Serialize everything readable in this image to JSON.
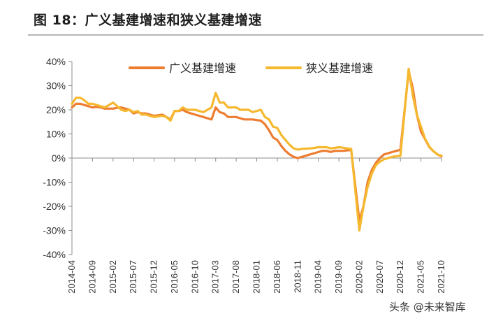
{
  "title": "图 18：广义基建增速和狭义基建增速",
  "watermark": "头条 @未来智库",
  "chart_data": {
    "type": "line",
    "ylim": [
      -40,
      40
    ],
    "yticks": [
      -40,
      -30,
      -20,
      -10,
      0,
      10,
      20,
      30,
      40
    ],
    "ytick_labels": [
      "-40%",
      "-30%",
      "-20%",
      "-10%",
      "0%",
      "10%",
      "20%",
      "30%",
      "40%"
    ],
    "x_tick_labels": [
      "2014-04",
      "2014-09",
      "2015-02",
      "2015-07",
      "2015-12",
      "2016-05",
      "2016-10",
      "2017-03",
      "2017-08",
      "2018-01",
      "2018-06",
      "2018-11",
      "2019-04",
      "2019-09",
      "2020-02",
      "2020-07",
      "2020-12",
      "2021-05",
      "2021-10"
    ],
    "grid": false,
    "legend_position": "top",
    "series": [
      {
        "name": "广义基建增速",
        "color": "#ed7d31",
        "points": [
          [
            "2014-04",
            21
          ],
          [
            "2014-05",
            22.5
          ],
          [
            "2014-06",
            22.5
          ],
          [
            "2014-07",
            22
          ],
          [
            "2014-08",
            21.5
          ],
          [
            "2014-09",
            21
          ],
          [
            "2014-10",
            21.2
          ],
          [
            "2014-11",
            21
          ],
          [
            "2014-12",
            20.5
          ],
          [
            "2015-02",
            20.5
          ],
          [
            "2015-03",
            20.8
          ],
          [
            "2015-04",
            21
          ],
          [
            "2015-05",
            20.5
          ],
          [
            "2015-06",
            20
          ],
          [
            "2015-07",
            18.5
          ],
          [
            "2015-08",
            19
          ],
          [
            "2015-09",
            18.5
          ],
          [
            "2015-10",
            18.5
          ],
          [
            "2015-11",
            18
          ],
          [
            "2015-12",
            17.5
          ],
          [
            "2016-02",
            18
          ],
          [
            "2016-03",
            17
          ],
          [
            "2016-04",
            16
          ],
          [
            "2016-05",
            19.5
          ],
          [
            "2016-06",
            19.5
          ],
          [
            "2016-07",
            20
          ],
          [
            "2016-08",
            19
          ],
          [
            "2016-09",
            18.5
          ],
          [
            "2016-10",
            18
          ],
          [
            "2016-11",
            17.5
          ],
          [
            "2016-12",
            17
          ],
          [
            "2017-02",
            16
          ],
          [
            "2017-03",
            21
          ],
          [
            "2017-04",
            19
          ],
          [
            "2017-05",
            18.5
          ],
          [
            "2017-06",
            17
          ],
          [
            "2017-07",
            17
          ],
          [
            "2017-08",
            17
          ],
          [
            "2017-09",
            16.5
          ],
          [
            "2017-10",
            16
          ],
          [
            "2017-11",
            16
          ],
          [
            "2017-12",
            16
          ],
          [
            "2018-02",
            15.5
          ],
          [
            "2018-03",
            14
          ],
          [
            "2018-04",
            11.5
          ],
          [
            "2018-05",
            8.5
          ],
          [
            "2018-06",
            7.5
          ],
          [
            "2018-07",
            5
          ],
          [
            "2018-08",
            3
          ],
          [
            "2018-09",
            1.5
          ],
          [
            "2018-10",
            0.5
          ],
          [
            "2018-11",
            0
          ],
          [
            "2018-12",
            0.5
          ],
          [
            "2019-02",
            1.5
          ],
          [
            "2019-03",
            2
          ],
          [
            "2019-04",
            2.5
          ],
          [
            "2019-05",
            3
          ],
          [
            "2019-06",
            3
          ],
          [
            "2019-07",
            2.5
          ],
          [
            "2019-08",
            3
          ],
          [
            "2019-09",
            3
          ],
          [
            "2019-10",
            3
          ],
          [
            "2019-11",
            3.2
          ],
          [
            "2019-12",
            3.3
          ],
          [
            "2020-02",
            -26
          ],
          [
            "2020-03",
            -20
          ],
          [
            "2020-04",
            -10
          ],
          [
            "2020-05",
            -5
          ],
          [
            "2020-06",
            -2
          ],
          [
            "2020-07",
            0
          ],
          [
            "2020-08",
            1.5
          ],
          [
            "2020-09",
            2
          ],
          [
            "2020-10",
            2.5
          ],
          [
            "2020-11",
            3
          ],
          [
            "2020-12",
            3.4
          ],
          [
            "2021-02",
            36
          ],
          [
            "2021-03",
            29
          ],
          [
            "2021-04",
            18
          ],
          [
            "2021-05",
            11
          ],
          [
            "2021-06",
            7.8
          ],
          [
            "2021-07",
            4.6
          ],
          [
            "2021-08",
            2.9
          ],
          [
            "2021-09",
            1.5
          ],
          [
            "2021-10",
            0.7
          ]
        ]
      },
      {
        "name": "狭义基建增速",
        "color": "#f5b82e",
        "points": [
          [
            "2014-04",
            22.5
          ],
          [
            "2014-05",
            25
          ],
          [
            "2014-06",
            25
          ],
          [
            "2014-07",
            24
          ],
          [
            "2014-08",
            22.5
          ],
          [
            "2014-09",
            22.5
          ],
          [
            "2014-10",
            22
          ],
          [
            "2014-11",
            21.5
          ],
          [
            "2014-12",
            21
          ],
          [
            "2015-02",
            23
          ],
          [
            "2015-03",
            21.5
          ],
          [
            "2015-04",
            20
          ],
          [
            "2015-05",
            19.5
          ],
          [
            "2015-06",
            20
          ],
          [
            "2015-07",
            19
          ],
          [
            "2015-08",
            19.5
          ],
          [
            "2015-09",
            18
          ],
          [
            "2015-10",
            18
          ],
          [
            "2015-11",
            17.5
          ],
          [
            "2015-12",
            17
          ],
          [
            "2016-02",
            17.5
          ],
          [
            "2016-03",
            17
          ],
          [
            "2016-04",
            15.5
          ],
          [
            "2016-05",
            19.5
          ],
          [
            "2016-06",
            19.5
          ],
          [
            "2016-07",
            21
          ],
          [
            "2016-08",
            20
          ],
          [
            "2016-09",
            20
          ],
          [
            "2016-10",
            20
          ],
          [
            "2016-11",
            19.5
          ],
          [
            "2016-12",
            19
          ],
          [
            "2017-02",
            21
          ],
          [
            "2017-03",
            27
          ],
          [
            "2017-04",
            23
          ],
          [
            "2017-05",
            23
          ],
          [
            "2017-06",
            21
          ],
          [
            "2017-07",
            21
          ],
          [
            "2017-08",
            21
          ],
          [
            "2017-09",
            20
          ],
          [
            "2017-10",
            20
          ],
          [
            "2017-11",
            20
          ],
          [
            "2017-12",
            19
          ],
          [
            "2018-02",
            20
          ],
          [
            "2018-03",
            17
          ],
          [
            "2018-04",
            16
          ],
          [
            "2018-05",
            13
          ],
          [
            "2018-06",
            12.5
          ],
          [
            "2018-07",
            9.5
          ],
          [
            "2018-08",
            7.5
          ],
          [
            "2018-09",
            5.5
          ],
          [
            "2018-10",
            4
          ],
          [
            "2018-11",
            3.5
          ],
          [
            "2018-12",
            3.8
          ],
          [
            "2019-02",
            4
          ],
          [
            "2019-03",
            4.2
          ],
          [
            "2019-04",
            4.5
          ],
          [
            "2019-05",
            4.5
          ],
          [
            "2019-06",
            4.5
          ],
          [
            "2019-07",
            4
          ],
          [
            "2019-08",
            4.2
          ],
          [
            "2019-09",
            4.5
          ],
          [
            "2019-10",
            4.3
          ],
          [
            "2019-11",
            4
          ],
          [
            "2019-12",
            3.8
          ],
          [
            "2020-02",
            -30
          ],
          [
            "2020-03",
            -20
          ],
          [
            "2020-04",
            -12
          ],
          [
            "2020-05",
            -6.5
          ],
          [
            "2020-06",
            -3
          ],
          [
            "2020-07",
            -1.5
          ],
          [
            "2020-08",
            -0.5
          ],
          [
            "2020-09",
            0
          ],
          [
            "2020-10",
            0.5
          ],
          [
            "2020-11",
            0.8
          ],
          [
            "2020-12",
            0.9
          ],
          [
            "2021-02",
            37
          ],
          [
            "2021-03",
            26
          ],
          [
            "2021-04",
            18
          ],
          [
            "2021-05",
            13
          ],
          [
            "2021-06",
            8
          ],
          [
            "2021-07",
            4.8
          ],
          [
            "2021-08",
            2.9
          ],
          [
            "2021-09",
            1.5
          ],
          [
            "2021-10",
            1
          ]
        ]
      }
    ]
  }
}
